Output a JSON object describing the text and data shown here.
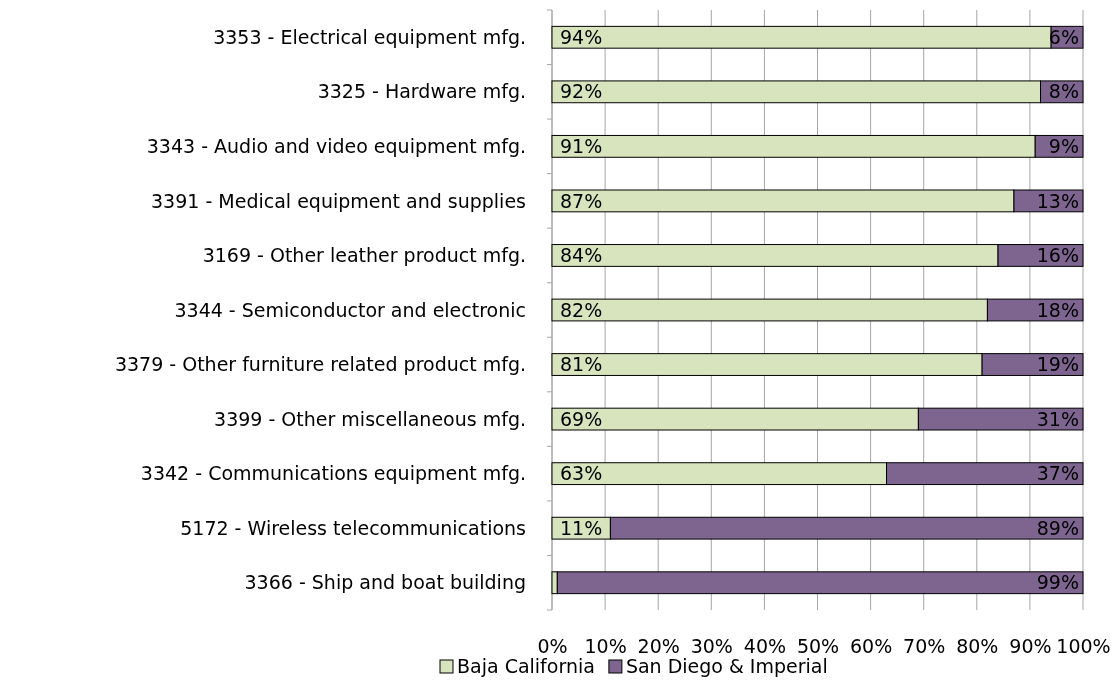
{
  "chart_data": {
    "type": "bar",
    "orientation": "horizontal",
    "stacked": true,
    "categories": [
      "3353 - Electrical equipment mfg.",
      "3325 - Hardware mfg.",
      "3343 - Audio and video equipment mfg.",
      "3391 - Medical equipment and supplies",
      "3169 - Other leather product mfg.",
      "3344 - Semiconductor and electronic",
      "3379 - Other furniture related product mfg.",
      "3399 - Other miscellaneous mfg.",
      "3342 - Communications equipment mfg.",
      "5172 - Wireless telecommunications",
      "3366 - Ship and boat building"
    ],
    "series": [
      {
        "name": "Baja California",
        "color": "#d7e4bd",
        "values": [
          94,
          92,
          91,
          87,
          84,
          82,
          81,
          69,
          63,
          11,
          1
        ],
        "value_labels": [
          "94%",
          "92%",
          "91%",
          "87%",
          "84%",
          "82%",
          "81%",
          "69%",
          "63%",
          "11%",
          null
        ]
      },
      {
        "name": "San Diego & Imperial",
        "color": "#7d6590",
        "values": [
          6,
          8,
          9,
          13,
          16,
          18,
          19,
          31,
          37,
          89,
          99
        ],
        "value_labels": [
          "6%",
          "8%",
          "9%",
          "13%",
          "16%",
          "18%",
          "19%",
          "31%",
          "37%",
          "89%",
          "99%"
        ]
      }
    ],
    "xlim": [
      0,
      100
    ],
    "xticks": [
      {
        "value": 0,
        "label": "0%"
      },
      {
        "value": 10,
        "label": "10%"
      },
      {
        "value": 20,
        "label": "20%"
      },
      {
        "value": 30,
        "label": "30%"
      },
      {
        "value": 40,
        "label": "40%"
      },
      {
        "value": 50,
        "label": "50%"
      },
      {
        "value": 60,
        "label": "60%"
      },
      {
        "value": 70,
        "label": "70%"
      },
      {
        "value": 80,
        "label": "80%"
      },
      {
        "value": 90,
        "label": "90%"
      },
      {
        "value": 100,
        "label": "100%"
      }
    ],
    "grid": "x",
    "legend": "bottom"
  }
}
